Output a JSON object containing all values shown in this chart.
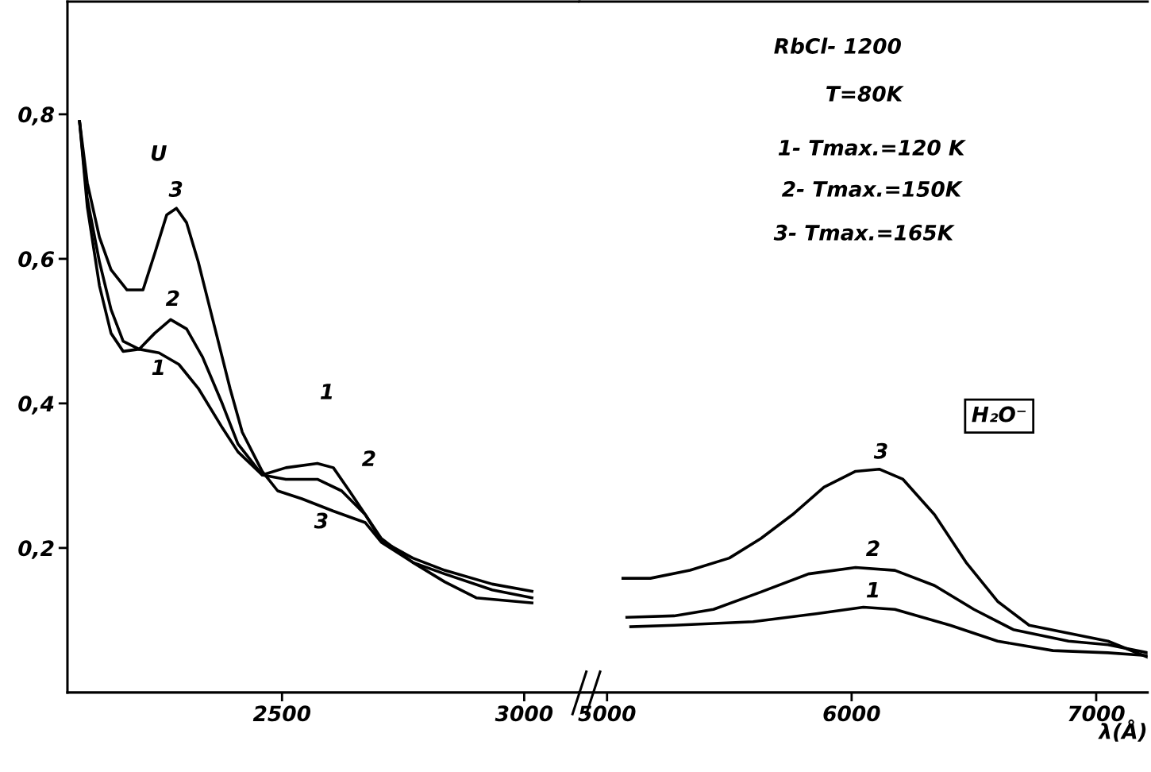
{
  "chart_data": [
    {
      "type": "line",
      "ylim": [
        0,
        0.956
      ],
      "yticks": [
        {
          "value": 0.2,
          "label": "0,2"
        },
        {
          "value": 0.4,
          "label": "0,4"
        },
        {
          "value": 0.6,
          "label": "0,6"
        },
        {
          "value": 0.8,
          "label": "0,8"
        }
      ],
      "xlim": [
        2057,
        3114
      ],
      "xticks": [
        2500,
        3000
      ],
      "grid": false,
      "legend": false,
      "series": [
        {
          "color": "#000000",
          "x": [
            2082,
            2098,
            2123,
            2147,
            2180,
            2213,
            2237,
            2262,
            2282,
            2303,
            2327,
            2360,
            2393,
            2418,
            2459,
            2491,
            2541,
            2606,
            2672,
            2705,
            2770,
            2836,
            2934,
            3016
          ],
          "values": [
            0.79,
            0.705,
            0.63,
            0.585,
            0.557,
            0.557,
            0.607,
            0.661,
            0.67,
            0.65,
            0.596,
            0.508,
            0.42,
            0.36,
            0.306,
            0.279,
            0.268,
            0.251,
            0.235,
            0.208,
            0.18,
            0.164,
            0.142,
            0.131
          ]
        },
        {
          "color": "#000000",
          "x": [
            2082,
            2098,
            2123,
            2147,
            2172,
            2205,
            2237,
            2270,
            2303,
            2336,
            2377,
            2409,
            2459,
            2508,
            2573,
            2623,
            2672,
            2705,
            2770,
            2836,
            2934,
            3016
          ],
          "values": [
            0.79,
            0.683,
            0.596,
            0.53,
            0.486,
            0.475,
            0.497,
            0.516,
            0.503,
            0.464,
            0.399,
            0.344,
            0.301,
            0.295,
            0.295,
            0.279,
            0.246,
            0.21,
            0.186,
            0.169,
            0.15,
            0.14
          ]
        },
        {
          "color": "#000000",
          "x": [
            2082,
            2098,
            2123,
            2147,
            2172,
            2205,
            2246,
            2287,
            2327,
            2377,
            2409,
            2459,
            2508,
            2573,
            2606,
            2639,
            2672,
            2705,
            2770,
            2836,
            2901,
            3016
          ],
          "values": [
            0.79,
            0.672,
            0.563,
            0.497,
            0.472,
            0.475,
            0.47,
            0.454,
            0.421,
            0.366,
            0.333,
            0.301,
            0.311,
            0.317,
            0.311,
            0.279,
            0.246,
            0.213,
            0.18,
            0.153,
            0.131,
            0.124
          ]
        }
      ],
      "annotations": [
        "U",
        "3",
        "2",
        "1",
        "1",
        "2",
        "3"
      ]
    },
    {
      "type": "line",
      "ylim": [
        0,
        0.956
      ],
      "xlim": [
        4887,
        7210
      ],
      "xticks": [
        5000,
        6000,
        7000
      ],
      "xlabel": "λ(Å)",
      "tick_labels": "x",
      "grid": false,
      "legend": false,
      "series": [
        {
          "color": "#000000",
          "x": [
            5065,
            5177,
            5339,
            5500,
            5629,
            5758,
            5887,
            6016,
            6113,
            6210,
            6339,
            6468,
            6597,
            6726,
            6887,
            7048,
            7210
          ],
          "values": [
            0.158,
            0.158,
            0.169,
            0.186,
            0.213,
            0.246,
            0.284,
            0.306,
            0.309,
            0.295,
            0.246,
            0.18,
            0.126,
            0.093,
            0.082,
            0.071,
            0.049
          ]
        },
        {
          "color": "#000000",
          "x": [
            5081,
            5274,
            5435,
            5629,
            5823,
            6016,
            6177,
            6339,
            6500,
            6661,
            6887,
            7048,
            7210
          ],
          "values": [
            0.104,
            0.106,
            0.115,
            0.139,
            0.164,
            0.173,
            0.169,
            0.148,
            0.115,
            0.087,
            0.071,
            0.066,
            0.055
          ]
        },
        {
          "color": "#000000",
          "x": [
            5097,
            5274,
            5597,
            5855,
            6048,
            6177,
            6403,
            6597,
            6823,
            7048,
            7210
          ],
          "values": [
            0.091,
            0.093,
            0.098,
            0.109,
            0.118,
            0.115,
            0.093,
            0.071,
            0.058,
            0.055,
            0.051
          ]
        }
      ],
      "annotations": [
        "3",
        "2",
        "1",
        "RbCl- 1200",
        "T=80K",
        "1- Tmax.=120 K",
        "2- Tmax.=150K",
        "3- Tmax.=165K",
        "H₂O⁻"
      ]
    }
  ]
}
